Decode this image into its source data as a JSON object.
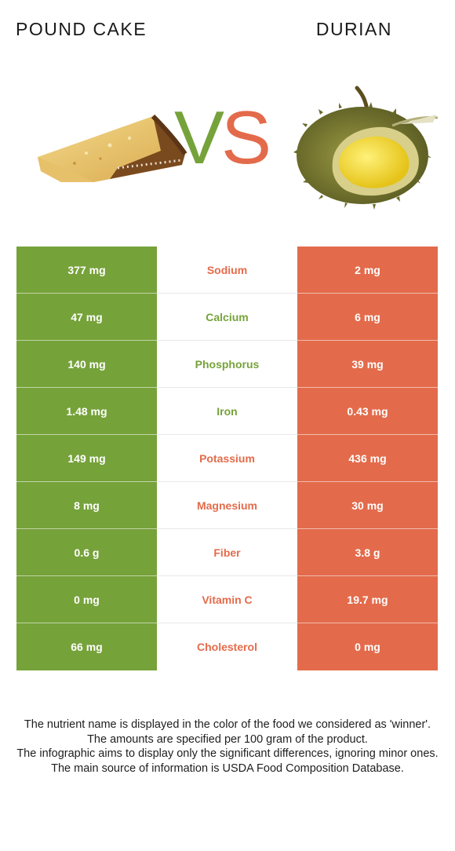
{
  "colors": {
    "green": "#76a23a",
    "red": "#e36b4b"
  },
  "header": {
    "left_food": "POUND CAKE",
    "right_food": "DURIAN"
  },
  "vs": {
    "v": "V",
    "s": "S"
  },
  "rows": [
    {
      "nutrient": "Sodium",
      "left": "377 mg",
      "right": "2 mg",
      "winner": "right"
    },
    {
      "nutrient": "Calcium",
      "left": "47 mg",
      "right": "6 mg",
      "winner": "left"
    },
    {
      "nutrient": "Phosphorus",
      "left": "140 mg",
      "right": "39 mg",
      "winner": "left"
    },
    {
      "nutrient": "Iron",
      "left": "1.48 mg",
      "right": "0.43 mg",
      "winner": "left"
    },
    {
      "nutrient": "Potassium",
      "left": "149 mg",
      "right": "436 mg",
      "winner": "right"
    },
    {
      "nutrient": "Magnesium",
      "left": "8 mg",
      "right": "30 mg",
      "winner": "right"
    },
    {
      "nutrient": "Fiber",
      "left": "0.6 g",
      "right": "3.8 g",
      "winner": "right"
    },
    {
      "nutrient": "Vitamin C",
      "left": "0 mg",
      "right": "19.7 mg",
      "winner": "right"
    },
    {
      "nutrient": "Cholesterol",
      "left": "66 mg",
      "right": "0 mg",
      "winner": "right"
    }
  ],
  "notes": [
    "The nutrient name is displayed in the color of the food we considered as 'winner'.",
    "The amounts are specified per 100 gram of the product.",
    "The infographic aims to display only the significant differences, ignoring minor ones.",
    "The main source of information is USDA Food Composition Database."
  ]
}
